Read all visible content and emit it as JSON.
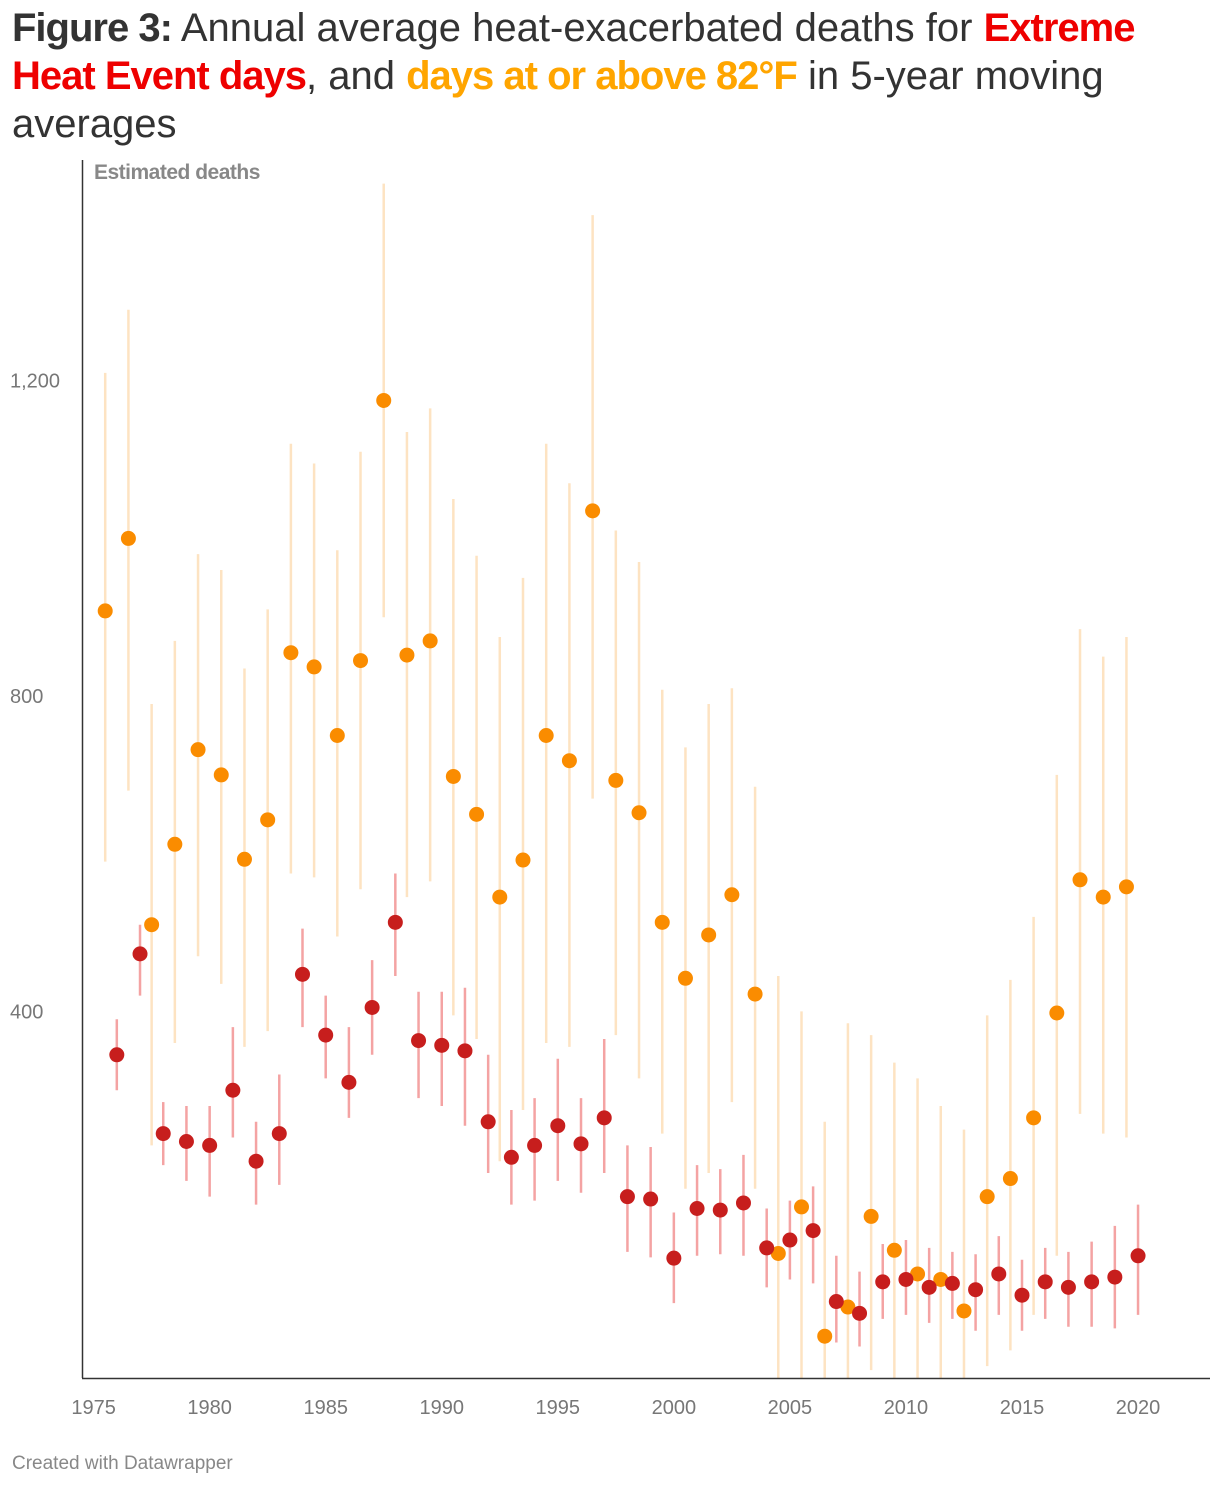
{
  "title": {
    "figure_label": "Figure 3:",
    "part1": "Annual average heat-exacerbated deaths for",
    "series1_label": "Extreme Heat Event days",
    "part2": ", and",
    "series2_label": "days at or above 82°F",
    "part3": "in 5-year moving averages"
  },
  "colors": {
    "series1": "#c71e1d",
    "series1_text": "#ee0000",
    "series1_range": "#f4a3a3",
    "series2": "#fa8c00",
    "series2_text": "#ffa500",
    "series2_range": "#fde3c2",
    "axis": "#333333",
    "tick_text": "#777777"
  },
  "footer": "Created with Datawrapper",
  "chart_data": {
    "type": "scatter",
    "ylabel": "Estimated deaths",
    "xlim": [
      1974.5,
      2023.1
    ],
    "ylim": [
      -65,
      1480
    ],
    "x_ticks": [
      1975,
      1980,
      1985,
      1990,
      1995,
      2000,
      2005,
      2010,
      2015,
      2020
    ],
    "y_ticks": [
      {
        "value": 400,
        "label": "400"
      },
      {
        "value": 800,
        "label": "800"
      },
      {
        "value": 1200,
        "label": "1,200"
      }
    ],
    "grid": false,
    "series": [
      {
        "name": "Extreme Heat Event days",
        "points": [
          {
            "x": 1976,
            "y": 345,
            "low": 300,
            "high": 390
          },
          {
            "x": 1977,
            "y": 473,
            "low": 420,
            "high": 510
          },
          {
            "x": 1978,
            "y": 245,
            "low": 205,
            "high": 285
          },
          {
            "x": 1979,
            "y": 235,
            "low": 185,
            "high": 280
          },
          {
            "x": 1980,
            "y": 230,
            "low": 165,
            "high": 280
          },
          {
            "x": 1981,
            "y": 300,
            "low": 240,
            "high": 380
          },
          {
            "x": 1982,
            "y": 210,
            "low": 155,
            "high": 260
          },
          {
            "x": 1983,
            "y": 245,
            "low": 180,
            "high": 320
          },
          {
            "x": 1984,
            "y": 447,
            "low": 380,
            "high": 505
          },
          {
            "x": 1985,
            "y": 370,
            "low": 315,
            "high": 420
          },
          {
            "x": 1986,
            "y": 310,
            "low": 265,
            "high": 380
          },
          {
            "x": 1987,
            "y": 405,
            "low": 345,
            "high": 465
          },
          {
            "x": 1988,
            "y": 513,
            "low": 445,
            "high": 575
          },
          {
            "x": 1989,
            "y": 363,
            "low": 290,
            "high": 425
          },
          {
            "x": 1990,
            "y": 357,
            "low": 280,
            "high": 425
          },
          {
            "x": 1991,
            "y": 350,
            "low": 255,
            "high": 430
          },
          {
            "x": 1992,
            "y": 260,
            "low": 195,
            "high": 345
          },
          {
            "x": 1993,
            "y": 215,
            "low": 155,
            "high": 275
          },
          {
            "x": 1994,
            "y": 230,
            "low": 160,
            "high": 290
          },
          {
            "x": 1995,
            "y": 255,
            "low": 185,
            "high": 340
          },
          {
            "x": 1996,
            "y": 232,
            "low": 170,
            "high": 290
          },
          {
            "x": 1997,
            "y": 265,
            "low": 195,
            "high": 365
          },
          {
            "x": 1998,
            "y": 165,
            "low": 95,
            "high": 230
          },
          {
            "x": 1999,
            "y": 162,
            "low": 88,
            "high": 228
          },
          {
            "x": 2000,
            "y": 87,
            "low": 30,
            "high": 145
          },
          {
            "x": 2001,
            "y": 150,
            "low": 90,
            "high": 205
          },
          {
            "x": 2002,
            "y": 148,
            "low": 92,
            "high": 200
          },
          {
            "x": 2003,
            "y": 157,
            "low": 90,
            "high": 218
          },
          {
            "x": 2004,
            "y": 100,
            "low": 50,
            "high": 150
          },
          {
            "x": 2005,
            "y": 110,
            "low": 60,
            "high": 160
          },
          {
            "x": 2006,
            "y": 122,
            "low": 55,
            "high": 178
          },
          {
            "x": 2007,
            "y": 32,
            "low": -20,
            "high": 90
          },
          {
            "x": 2008,
            "y": 17,
            "low": -25,
            "high": 70
          },
          {
            "x": 2009,
            "y": 57,
            "low": 10,
            "high": 105
          },
          {
            "x": 2010,
            "y": 60,
            "low": 15,
            "high": 110
          },
          {
            "x": 2011,
            "y": 50,
            "low": 5,
            "high": 100
          },
          {
            "x": 2012,
            "y": 55,
            "low": 10,
            "high": 95
          },
          {
            "x": 2013,
            "y": 47,
            "low": -5,
            "high": 92
          },
          {
            "x": 2014,
            "y": 67,
            "low": 15,
            "high": 115
          },
          {
            "x": 2015,
            "y": 40,
            "low": -5,
            "high": 85
          },
          {
            "x": 2016,
            "y": 57,
            "low": 10,
            "high": 100
          },
          {
            "x": 2017,
            "y": 50,
            "low": 0,
            "high": 95
          },
          {
            "x": 2018,
            "y": 57,
            "low": 0,
            "high": 108
          },
          {
            "x": 2019,
            "y": 63,
            "low": -2,
            "high": 128
          },
          {
            "x": 2020,
            "y": 90,
            "low": 15,
            "high": 155
          }
        ]
      },
      {
        "name": "days at or above 82°F",
        "points": [
          {
            "x": 1975.5,
            "y": 908,
            "low": 590,
            "high": 1210
          },
          {
            "x": 1976.5,
            "y": 1000,
            "low": 680,
            "high": 1290
          },
          {
            "x": 1977.5,
            "y": 510,
            "low": 230,
            "high": 790
          },
          {
            "x": 1978.5,
            "y": 612,
            "low": 360,
            "high": 870
          },
          {
            "x": 1979.5,
            "y": 732,
            "low": 470,
            "high": 980
          },
          {
            "x": 1980.5,
            "y": 700,
            "low": 435,
            "high": 960
          },
          {
            "x": 1981.5,
            "y": 593,
            "low": 355,
            "high": 835
          },
          {
            "x": 1982.5,
            "y": 643,
            "low": 375,
            "high": 910
          },
          {
            "x": 1983.5,
            "y": 855,
            "low": 575,
            "high": 1120
          },
          {
            "x": 1984.5,
            "y": 837,
            "low": 570,
            "high": 1095
          },
          {
            "x": 1985.5,
            "y": 750,
            "low": 495,
            "high": 985
          },
          {
            "x": 1986.5,
            "y": 845,
            "low": 555,
            "high": 1110
          },
          {
            "x": 1987.5,
            "y": 1175,
            "low": 900,
            "high": 1450
          },
          {
            "x": 1988.5,
            "y": 852,
            "low": 545,
            "high": 1135
          },
          {
            "x": 1989.5,
            "y": 870,
            "low": 565,
            "high": 1165
          },
          {
            "x": 1990.5,
            "y": 698,
            "low": 395,
            "high": 1050
          },
          {
            "x": 1991.5,
            "y": 650,
            "low": 365,
            "high": 978
          },
          {
            "x": 1992.5,
            "y": 545,
            "low": 210,
            "high": 875
          },
          {
            "x": 1993.5,
            "y": 592,
            "low": 275,
            "high": 950
          },
          {
            "x": 1994.5,
            "y": 750,
            "low": 360,
            "high": 1120
          },
          {
            "x": 1995.5,
            "y": 718,
            "low": 355,
            "high": 1070
          },
          {
            "x": 1996.5,
            "y": 1035,
            "low": 670,
            "high": 1410
          },
          {
            "x": 1997.5,
            "y": 693,
            "low": 370,
            "high": 1010
          },
          {
            "x": 1998.5,
            "y": 652,
            "low": 315,
            "high": 970
          },
          {
            "x": 1999.5,
            "y": 513,
            "low": 245,
            "high": 808
          },
          {
            "x": 2000.5,
            "y": 442,
            "low": 175,
            "high": 735
          },
          {
            "x": 2001.5,
            "y": 497,
            "low": 195,
            "high": 790
          },
          {
            "x": 2002.5,
            "y": 548,
            "low": 285,
            "high": 810
          },
          {
            "x": 2003.5,
            "y": 422,
            "low": 175,
            "high": 685
          },
          {
            "x": 2004.5,
            "y": 93,
            "low": -65,
            "high": 445
          },
          {
            "x": 2005.5,
            "y": 152,
            "low": -65,
            "high": 400
          },
          {
            "x": 2006.5,
            "y": -12,
            "low": -65,
            "high": 260
          },
          {
            "x": 2007.5,
            "y": 25,
            "low": -65,
            "high": 385
          },
          {
            "x": 2008.5,
            "y": 140,
            "low": -55,
            "high": 370
          },
          {
            "x": 2009.5,
            "y": 97,
            "low": -65,
            "high": 335
          },
          {
            "x": 2010.5,
            "y": 67,
            "low": -65,
            "high": 315
          },
          {
            "x": 2011.5,
            "y": 60,
            "low": -65,
            "high": 280
          },
          {
            "x": 2012.5,
            "y": 20,
            "low": -65,
            "high": 250
          },
          {
            "x": 2013.5,
            "y": 165,
            "low": -50,
            "high": 395
          },
          {
            "x": 2014.5,
            "y": 188,
            "low": -30,
            "high": 440
          },
          {
            "x": 2015.5,
            "y": 265,
            "low": 15,
            "high": 520
          },
          {
            "x": 2016.5,
            "y": 398,
            "low": 90,
            "high": 700
          },
          {
            "x": 2017.5,
            "y": 567,
            "low": 270,
            "high": 885
          },
          {
            "x": 2018.5,
            "y": 545,
            "low": 245,
            "high": 850
          },
          {
            "x": 2019.5,
            "y": 558,
            "low": 240,
            "high": 875
          }
        ]
      }
    ]
  }
}
